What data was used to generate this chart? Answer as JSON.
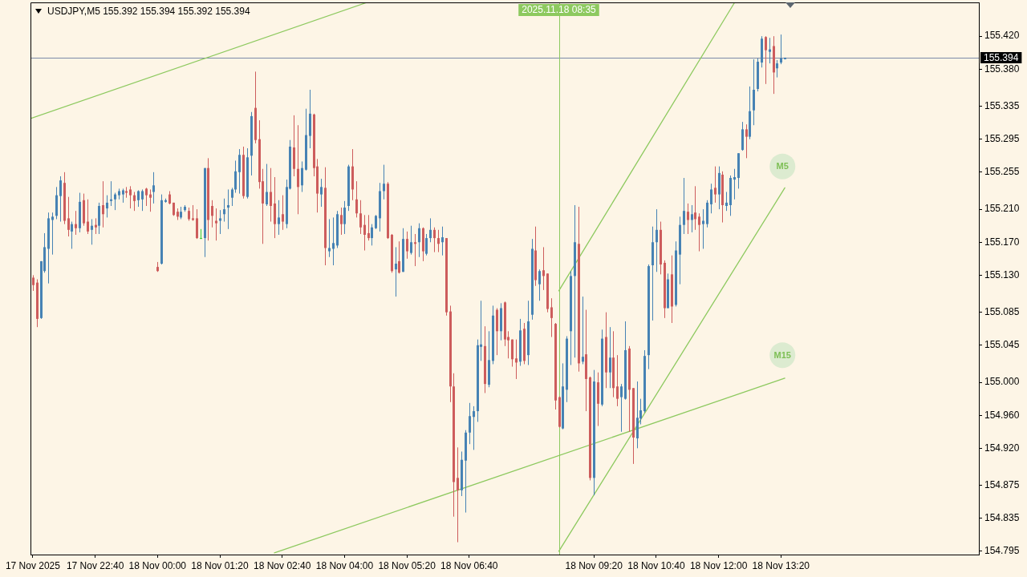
{
  "chart_data": {
    "type": "candlestick",
    "title": "USDJPY,M5 155.392 155.394 155.392 155.394",
    "x": [
      "2025-11-17T21:20",
      "2025-11-17T21:25",
      "2025-11-17T21:30",
      "2025-11-17T21:35",
      "2025-11-17T21:40",
      "2025-11-17T21:45",
      "2025-11-17T21:50",
      "2025-11-17T21:55",
      "2025-11-17T22:00",
      "2025-11-17T22:05",
      "2025-11-17T22:10",
      "2025-11-17T22:15",
      "2025-11-17T22:20",
      "2025-11-17T22:25",
      "2025-11-17T22:30",
      "2025-11-17T22:35",
      "2025-11-17T22:40",
      "2025-11-17T22:45",
      "2025-11-17T22:50",
      "2025-11-17T22:55",
      "2025-11-17T23:00",
      "2025-11-17T23:05",
      "2025-11-17T23:10",
      "2025-11-17T23:15",
      "2025-11-17T23:20",
      "2025-11-17T23:25",
      "2025-11-17T23:30",
      "2025-11-17T23:35",
      "2025-11-17T23:40",
      "2025-11-17T23:45",
      "2025-11-17T23:50",
      "2025-11-17T23:55",
      "2025-11-18T00:00",
      "2025-11-18T00:05",
      "2025-11-18T00:10",
      "2025-11-18T00:15",
      "2025-11-18T00:20",
      "2025-11-18T00:25",
      "2025-11-18T00:30",
      "2025-11-18T00:35",
      "2025-11-18T00:40",
      "2025-11-18T00:45",
      "2025-11-18T00:50",
      "2025-11-18T00:55",
      "2025-11-18T01:00",
      "2025-11-18T01:05",
      "2025-11-18T01:10",
      "2025-11-18T01:15",
      "2025-11-18T01:20",
      "2025-11-18T01:25",
      "2025-11-18T01:30",
      "2025-11-18T01:35",
      "2025-11-18T01:40",
      "2025-11-18T01:45",
      "2025-11-18T01:50",
      "2025-11-18T01:55",
      "2025-11-18T02:00",
      "2025-11-18T02:05",
      "2025-11-18T02:10",
      "2025-11-18T02:15",
      "2025-11-18T02:20",
      "2025-11-18T02:25",
      "2025-11-18T02:30",
      "2025-11-18T02:35",
      "2025-11-18T02:40",
      "2025-11-18T02:45",
      "2025-11-18T02:50",
      "2025-11-18T02:55",
      "2025-11-18T03:00",
      "2025-11-18T03:05",
      "2025-11-18T03:10",
      "2025-11-18T03:15",
      "2025-11-18T03:20",
      "2025-11-18T03:25",
      "2025-11-18T03:30",
      "2025-11-18T03:35",
      "2025-11-18T03:40",
      "2025-11-18T03:45",
      "2025-11-18T03:50",
      "2025-11-18T03:55",
      "2025-11-18T04:00",
      "2025-11-18T04:05",
      "2025-11-18T04:10",
      "2025-11-18T04:15",
      "2025-11-18T04:20",
      "2025-11-18T04:25",
      "2025-11-18T04:30",
      "2025-11-18T04:35",
      "2025-11-18T04:40",
      "2025-11-18T04:45",
      "2025-11-18T04:50",
      "2025-11-18T04:55",
      "2025-11-18T05:00",
      "2025-11-18T05:05",
      "2025-11-18T05:10",
      "2025-11-18T05:15",
      "2025-11-18T05:20",
      "2025-11-18T05:25",
      "2025-11-18T05:30",
      "2025-11-18T05:35",
      "2025-11-18T05:40",
      "2025-11-18T05:45",
      "2025-11-18T05:50",
      "2025-11-18T05:55",
      "2025-11-18T06:00",
      "2025-11-18T06:05",
      "2025-11-18T06:10",
      "2025-11-18T06:15",
      "2025-11-18T06:20",
      "2025-11-18T06:25",
      "2025-11-18T06:30",
      "2025-11-18T06:35",
      "2025-11-18T06:40",
      "2025-11-18T06:45",
      "2025-11-18T06:50",
      "2025-11-18T06:55",
      "2025-11-18T07:00",
      "2025-11-18T07:05",
      "2025-11-18T07:10",
      "2025-11-18T07:15",
      "2025-11-18T07:20",
      "2025-11-18T07:25",
      "2025-11-18T07:30",
      "2025-11-18T07:35",
      "2025-11-18T07:40",
      "2025-11-18T07:45",
      "2025-11-18T07:50",
      "2025-11-18T07:55",
      "2025-11-18T08:00",
      "2025-11-18T08:05",
      "2025-11-18T08:10",
      "2025-11-18T08:15",
      "2025-11-18T08:20",
      "2025-11-18T08:25",
      "2025-11-18T08:30",
      "2025-11-18T08:35",
      "2025-11-18T08:40",
      "2025-11-18T08:45",
      "2025-11-18T08:50",
      "2025-11-18T08:55",
      "2025-11-18T09:00",
      "2025-11-18T09:05",
      "2025-11-18T09:10",
      "2025-11-18T09:15",
      "2025-11-18T09:20",
      "2025-11-18T09:25",
      "2025-11-18T09:30",
      "2025-11-18T09:35",
      "2025-11-18T09:40",
      "2025-11-18T09:45",
      "2025-11-18T09:50",
      "2025-11-18T09:55",
      "2025-11-18T10:00",
      "2025-11-18T10:05",
      "2025-11-18T10:10",
      "2025-11-18T10:15",
      "2025-11-18T10:20",
      "2025-11-18T10:25",
      "2025-11-18T10:30",
      "2025-11-18T10:35",
      "2025-11-18T10:40",
      "2025-11-18T10:45",
      "2025-11-18T10:50",
      "2025-11-18T10:55",
      "2025-11-18T11:00",
      "2025-11-18T11:05",
      "2025-11-18T11:10",
      "2025-11-18T11:15",
      "2025-11-18T11:20",
      "2025-11-18T11:25",
      "2025-11-18T11:30",
      "2025-11-18T11:35",
      "2025-11-18T11:40",
      "2025-11-18T11:45",
      "2025-11-18T11:50",
      "2025-11-18T11:55",
      "2025-11-18T12:00",
      "2025-11-18T12:05",
      "2025-11-18T12:10",
      "2025-11-18T12:15",
      "2025-11-18T12:20",
      "2025-11-18T12:25",
      "2025-11-18T12:30",
      "2025-11-18T12:35",
      "2025-11-18T12:40",
      "2025-11-18T12:45",
      "2025-11-18T12:50",
      "2025-11-18T12:55",
      "2025-11-18T13:00",
      "2025-11-18T13:05",
      "2025-11-18T13:10",
      "2025-11-18T13:15",
      "2025-11-18T13:20",
      "2025-11-18T13:25"
    ],
    "ohlc": [
      [
        155.127,
        155.13,
        155.111,
        155.118
      ],
      [
        155.121,
        155.125,
        155.067,
        155.077
      ],
      [
        155.078,
        155.147,
        155.077,
        155.147
      ],
      [
        155.135,
        155.181,
        155.133,
        155.164
      ],
      [
        155.162,
        155.206,
        155.12,
        155.199
      ],
      [
        155.197,
        155.206,
        155.155,
        155.201
      ],
      [
        155.202,
        155.237,
        155.198,
        155.227
      ],
      [
        155.226,
        155.25,
        155.195,
        155.245
      ],
      [
        155.242,
        155.255,
        155.192,
        155.196
      ],
      [
        155.199,
        155.225,
        155.177,
        155.185
      ],
      [
        155.183,
        155.195,
        155.162,
        155.192
      ],
      [
        155.192,
        155.208,
        155.179,
        155.187
      ],
      [
        155.187,
        155.23,
        155.182,
        155.219
      ],
      [
        155.221,
        155.229,
        155.19,
        155.193
      ],
      [
        155.195,
        155.222,
        155.18,
        155.183
      ],
      [
        155.185,
        155.198,
        155.167,
        155.19
      ],
      [
        155.191,
        155.199,
        155.18,
        155.188
      ],
      [
        155.19,
        155.218,
        155.18,
        155.214
      ],
      [
        155.215,
        155.244,
        155.188,
        155.204
      ],
      [
        155.211,
        155.227,
        155.2,
        155.218
      ],
      [
        155.22,
        155.244,
        155.214,
        155.222
      ],
      [
        155.222,
        155.23,
        155.209,
        155.228
      ],
      [
        155.227,
        155.235,
        155.222,
        155.232
      ],
      [
        155.228,
        155.235,
        155.218,
        155.233
      ],
      [
        155.232,
        155.237,
        155.224,
        155.23
      ],
      [
        155.234,
        155.238,
        155.211,
        155.227
      ],
      [
        155.227,
        155.231,
        155.208,
        155.22
      ],
      [
        155.221,
        155.233,
        155.213,
        155.232
      ],
      [
        155.222,
        155.234,
        155.208,
        155.232
      ],
      [
        155.235,
        155.236,
        155.214,
        155.227
      ],
      [
        155.228,
        155.234,
        155.207,
        155.224
      ],
      [
        155.231,
        155.255,
        155.217,
        155.239
      ],
      [
        155.14,
        155.146,
        155.134,
        155.135
      ],
      [
        155.144,
        155.228,
        155.143,
        155.221
      ],
      [
        155.219,
        155.223,
        155.218,
        155.221
      ],
      [
        155.228,
        155.232,
        155.216,
        155.217
      ],
      [
        155.218,
        155.218,
        155.202,
        155.203
      ],
      [
        155.207,
        155.211,
        155.197,
        155.201
      ],
      [
        155.2,
        155.213,
        155.198,
        155.207
      ],
      [
        155.209,
        155.215,
        155.207,
        155.213
      ],
      [
        155.208,
        155.212,
        155.196,
        155.198
      ],
      [
        155.199,
        155.215,
        155.196,
        155.197
      ],
      [
        155.199,
        155.21,
        155.174,
        155.175
      ],
      [
        155.175,
        155.186,
        155.174,
        155.175
      ],
      [
        155.175,
        155.26,
        155.152,
        155.26
      ],
      [
        155.26,
        155.272,
        155.172,
        155.197
      ],
      [
        155.214,
        155.221,
        155.188,
        155.202
      ],
      [
        155.196,
        155.211,
        155.172,
        155.193
      ],
      [
        155.196,
        155.209,
        155.18,
        155.199
      ],
      [
        155.204,
        155.223,
        155.195,
        155.21
      ],
      [
        155.212,
        155.234,
        155.186,
        155.215
      ],
      [
        155.224,
        155.236,
        155.214,
        155.234
      ],
      [
        155.234,
        155.269,
        155.23,
        155.256
      ],
      [
        155.255,
        155.283,
        155.229,
        155.276
      ],
      [
        155.276,
        155.286,
        155.223,
        155.226
      ],
      [
        155.225,
        155.284,
        155.223,
        155.273
      ],
      [
        155.275,
        155.328,
        155.251,
        155.323
      ],
      [
        155.333,
        155.377,
        155.29,
        155.294
      ],
      [
        155.295,
        155.318,
        155.235,
        155.243
      ],
      [
        155.244,
        155.259,
        155.168,
        155.217
      ],
      [
        155.216,
        155.265,
        155.214,
        155.231
      ],
      [
        155.231,
        155.26,
        155.195,
        155.214
      ],
      [
        155.217,
        155.249,
        155.175,
        155.192
      ],
      [
        155.192,
        155.221,
        155.179,
        155.2
      ],
      [
        155.204,
        155.227,
        155.185,
        155.195
      ],
      [
        155.192,
        155.246,
        155.187,
        155.237
      ],
      [
        155.235,
        155.294,
        155.234,
        155.286
      ],
      [
        155.285,
        155.324,
        155.25,
        155.259
      ],
      [
        155.259,
        155.312,
        155.204,
        155.237
      ],
      [
        155.239,
        155.268,
        155.231,
        155.26
      ],
      [
        155.258,
        155.332,
        155.257,
        155.3
      ],
      [
        155.299,
        155.355,
        155.284,
        155.326
      ],
      [
        155.325,
        155.326,
        155.25,
        155.26
      ],
      [
        155.262,
        155.271,
        155.206,
        155.229
      ],
      [
        155.228,
        155.247,
        155.213,
        155.237
      ],
      [
        155.236,
        155.261,
        155.142,
        155.163
      ],
      [
        155.159,
        155.198,
        155.152,
        155.163
      ],
      [
        155.162,
        155.2,
        155.142,
        155.169
      ],
      [
        155.166,
        155.208,
        155.163,
        155.204
      ],
      [
        155.203,
        155.212,
        155.179,
        155.192
      ],
      [
        155.192,
        155.22,
        155.18,
        155.212
      ],
      [
        155.214,
        155.264,
        155.208,
        155.262
      ],
      [
        155.262,
        155.283,
        155.221,
        155.234
      ],
      [
        155.222,
        155.244,
        155.2,
        155.205
      ],
      [
        155.205,
        155.221,
        155.18,
        155.188
      ],
      [
        155.191,
        155.203,
        155.16,
        155.179
      ],
      [
        155.181,
        155.203,
        155.172,
        155.175
      ],
      [
        155.175,
        155.192,
        155.166,
        155.188
      ],
      [
        155.187,
        155.203,
        155.186,
        155.202
      ],
      [
        155.199,
        155.242,
        155.183,
        155.232
      ],
      [
        155.232,
        155.264,
        155.222,
        155.241
      ],
      [
        155.241,
        155.243,
        155.174,
        155.175
      ],
      [
        155.179,
        155.18,
        155.133,
        155.135
      ],
      [
        155.137,
        155.164,
        155.104,
        155.144
      ],
      [
        155.147,
        155.171,
        155.132,
        155.133
      ],
      [
        155.134,
        155.187,
        155.134,
        155.174
      ],
      [
        155.174,
        155.183,
        155.15,
        155.159
      ],
      [
        155.157,
        155.19,
        155.155,
        155.17
      ],
      [
        155.17,
        155.18,
        155.141,
        155.168
      ],
      [
        155.17,
        155.193,
        155.152,
        155.187
      ],
      [
        155.187,
        155.188,
        155.147,
        155.159
      ],
      [
        155.156,
        155.18,
        155.154,
        155.175
      ],
      [
        155.175,
        155.199,
        155.17,
        155.185
      ],
      [
        155.185,
        155.188,
        155.158,
        155.175
      ],
      [
        155.175,
        155.185,
        155.158,
        155.168
      ],
      [
        155.17,
        155.189,
        155.154,
        155.176
      ],
      [
        155.175,
        155.175,
        155.081,
        155.085
      ],
      [
        155.086,
        155.093,
        154.976,
        154.995
      ],
      [
        154.995,
        155.011,
        154.837,
        154.879
      ],
      [
        154.884,
        154.921,
        154.806,
        154.869
      ],
      [
        154.869,
        154.916,
        154.862,
        154.906
      ],
      [
        154.905,
        154.942,
        154.842,
        154.939
      ],
      [
        154.939,
        154.975,
        154.925,
        154.959
      ],
      [
        154.958,
        154.971,
        154.918,
        154.965
      ],
      [
        154.965,
        155.052,
        154.952,
        155.045
      ],
      [
        155.043,
        155.099,
        155.026,
        155.046
      ],
      [
        155.044,
        155.068,
        154.987,
        154.998
      ],
      [
        154.997,
        155.062,
        154.994,
        155.027
      ],
      [
        155.026,
        155.093,
        155.022,
        155.081
      ],
      [
        155.088,
        155.09,
        155.033,
        155.062
      ],
      [
        155.062,
        155.096,
        155.051,
        155.09
      ],
      [
        155.097,
        155.098,
        155.044,
        155.052
      ],
      [
        155.055,
        155.062,
        155.029,
        155.051
      ],
      [
        155.052,
        155.052,
        155.019,
        155.028
      ],
      [
        155.029,
        155.052,
        155.004,
        155.024
      ],
      [
        155.025,
        155.077,
        155.02,
        155.063
      ],
      [
        155.065,
        155.072,
        155.022,
        155.026
      ],
      [
        155.033,
        155.099,
        155.021,
        155.074
      ],
      [
        155.082,
        155.174,
        155.076,
        155.162
      ],
      [
        155.16,
        155.189,
        155.117,
        155.124
      ],
      [
        155.119,
        155.137,
        155.099,
        155.135
      ],
      [
        155.136,
        155.164,
        155.112,
        155.129
      ],
      [
        155.132,
        155.132,
        155.085,
        155.089
      ],
      [
        155.091,
        155.102,
        155.055,
        155.078
      ],
      [
        155.071,
        155.072,
        154.967,
        154.978
      ],
      [
        154.982,
        154.983,
        154.945,
        154.946
      ],
      [
        154.944,
        155.023,
        154.943,
        154.995
      ],
      [
        154.991,
        155.056,
        154.976,
        155.053
      ],
      [
        155.062,
        155.135,
        155.021,
        155.129
      ],
      [
        155.129,
        155.215,
        155.03,
        155.17
      ],
      [
        155.168,
        155.213,
        155.013,
        155.023
      ],
      [
        155.025,
        155.104,
        155.022,
        155.031
      ],
      [
        155.034,
        155.088,
        154.965,
        155.004
      ],
      [
        155.006,
        155.007,
        154.881,
        154.884
      ],
      [
        154.884,
        155.015,
        154.863,
        155.001
      ],
      [
        155.0,
        155.012,
        154.947,
        154.974
      ],
      [
        154.973,
        155.064,
        154.971,
        155.053
      ],
      [
        155.055,
        155.085,
        154.993,
        155.012
      ],
      [
        155.012,
        155.067,
        154.993,
        155.03
      ],
      [
        155.03,
        155.062,
        154.982,
        154.993
      ],
      [
        154.995,
        155.033,
        154.971,
        154.98
      ],
      [
        154.982,
        154.998,
        154.94,
        154.995
      ],
      [
        154.98,
        155.074,
        154.979,
        155.039
      ],
      [
        155.041,
        155.044,
        154.94,
        154.991
      ],
      [
        154.993,
        154.993,
        154.901,
        154.933
      ],
      [
        154.932,
        155.001,
        154.92,
        154.957
      ],
      [
        154.956,
        154.98,
        154.949,
        154.966
      ],
      [
        154.965,
        155.039,
        154.963,
        155.032
      ],
      [
        155.033,
        155.143,
        155.016,
        155.141
      ],
      [
        155.142,
        155.189,
        155.075,
        155.17
      ],
      [
        155.17,
        155.21,
        155.134,
        155.185
      ],
      [
        155.185,
        155.195,
        155.131,
        155.143
      ],
      [
        155.145,
        155.148,
        155.078,
        155.09
      ],
      [
        155.09,
        155.132,
        155.09,
        155.125
      ],
      [
        155.131,
        155.154,
        155.072,
        155.092
      ],
      [
        155.094,
        155.171,
        155.092,
        155.16
      ],
      [
        155.155,
        155.201,
        155.119,
        155.191
      ],
      [
        155.191,
        155.248,
        155.18,
        155.208
      ],
      [
        155.207,
        155.217,
        155.18,
        155.197
      ],
      [
        155.197,
        155.215,
        155.182,
        155.204
      ],
      [
        155.206,
        155.238,
        155.185,
        155.198
      ],
      [
        155.201,
        155.205,
        155.159,
        155.191
      ],
      [
        155.192,
        155.21,
        155.162,
        155.196
      ],
      [
        155.192,
        155.221,
        155.188,
        155.218
      ],
      [
        155.216,
        155.241,
        155.205,
        155.234
      ],
      [
        155.236,
        155.262,
        155.218,
        155.228
      ],
      [
        155.228,
        155.262,
        155.21,
        155.254
      ],
      [
        155.252,
        155.256,
        155.194,
        155.215
      ],
      [
        155.214,
        155.231,
        155.208,
        155.218
      ],
      [
        155.215,
        155.251,
        155.202,
        155.248
      ],
      [
        155.246,
        155.259,
        155.222,
        155.249
      ],
      [
        155.248,
        155.278,
        155.235,
        155.278
      ],
      [
        155.282,
        155.316,
        155.281,
        155.307
      ],
      [
        155.307,
        155.313,
        155.272,
        155.298
      ],
      [
        155.298,
        155.359,
        155.295,
        155.329
      ],
      [
        155.33,
        155.392,
        155.312,
        155.355
      ],
      [
        155.356,
        155.393,
        155.353,
        155.389
      ],
      [
        155.388,
        155.42,
        155.382,
        155.417
      ],
      [
        155.419,
        155.42,
        155.362,
        155.403
      ],
      [
        155.401,
        155.418,
        155.387,
        155.404
      ],
      [
        155.408,
        155.42,
        155.35,
        155.376
      ],
      [
        155.381,
        155.391,
        155.37,
        155.387
      ],
      [
        155.388,
        155.422,
        155.386,
        155.393
      ],
      [
        155.392,
        155.394,
        155.392,
        155.394
      ]
    ],
    "colors": [
      "#cd5c5c",
      "#cd5c5c",
      "#4682b4",
      "#4682b4",
      "#4682b4",
      "#4682b4",
      "#4682b4",
      "#4682b4",
      "#cd5c5c",
      "#cd5c5c",
      "#4682b4",
      "#cd5c5c",
      "#4682b4",
      "#cd5c5c",
      "#cd5c5c",
      "#4682b4",
      "#cd5c5c",
      "#4682b4",
      "#cd5c5c",
      "#4682b4",
      "#4682b4",
      "#4682b4",
      "#4682b4",
      "#4682b4",
      "#cd5c5c",
      "#cd5c5c",
      "#cd5c5c",
      "#4682b4",
      "#4682b4",
      "#cd5c5c",
      "#cd5c5c",
      "#4682b4",
      "#cd5c5c",
      "#4682b4",
      "#4682b4",
      "#cd5c5c",
      "#cd5c5c",
      "#cd5c5c",
      "#4682b4",
      "#4682b4",
      "#cd5c5c",
      "#cd5c5c",
      "#cd5c5c",
      "#32cd32",
      "#4682b4",
      "#cd5c5c",
      "#cd5c5c",
      "#cd5c5c",
      "#4682b4",
      "#4682b4",
      "#4682b4",
      "#4682b4",
      "#4682b4",
      "#4682b4",
      "#cd5c5c",
      "#4682b4",
      "#4682b4",
      "#cd5c5c",
      "#cd5c5c",
      "#cd5c5c",
      "#4682b4",
      "#cd5c5c",
      "#cd5c5c",
      "#4682b4",
      "#cd5c5c",
      "#4682b4",
      "#4682b4",
      "#cd5c5c",
      "#cd5c5c",
      "#4682b4",
      "#4682b4",
      "#4682b4",
      "#cd5c5c",
      "#cd5c5c",
      "#4682b4",
      "#cd5c5c",
      "#4682b4",
      "#4682b4",
      "#4682b4",
      "#cd5c5c",
      "#4682b4",
      "#4682b4",
      "#cd5c5c",
      "#cd5c5c",
      "#cd5c5c",
      "#cd5c5c",
      "#cd5c5c",
      "#4682b4",
      "#4682b4",
      "#4682b4",
      "#4682b4",
      "#cd5c5c",
      "#cd5c5c",
      "#4682b4",
      "#cd5c5c",
      "#4682b4",
      "#cd5c5c",
      "#4682b4",
      "#cd5c5c",
      "#4682b4",
      "#cd5c5c",
      "#4682b4",
      "#4682b4",
      "#cd5c5c",
      "#cd5c5c",
      "#4682b4",
      "#cd5c5c",
      "#cd5c5c",
      "#cd5c5c",
      "#cd5c5c",
      "#4682b4",
      "#4682b4",
      "#4682b4",
      "#4682b4",
      "#4682b4",
      "#4682b4",
      "#cd5c5c",
      "#4682b4",
      "#4682b4",
      "#cd5c5c",
      "#4682b4",
      "#cd5c5c",
      "#cd5c5c",
      "#cd5c5c",
      "#cd5c5c",
      "#4682b4",
      "#cd5c5c",
      "#4682b4",
      "#4682b4",
      "#cd5c5c",
      "#4682b4",
      "#cd5c5c",
      "#cd5c5c",
      "#cd5c5c",
      "#cd5c5c",
      "#cd5c5c",
      "#4682b4",
      "#4682b4",
      "#4682b4",
      "#4682b4",
      "#cd5c5c",
      "#4682b4",
      "#cd5c5c",
      "#cd5c5c",
      "#4682b4",
      "#cd5c5c",
      "#4682b4",
      "#cd5c5c",
      "#4682b4",
      "#cd5c5c",
      "#cd5c5c",
      "#4682b4",
      "#4682b4",
      "#cd5c5c",
      "#cd5c5c",
      "#4682b4",
      "#4682b4",
      "#4682b4",
      "#4682b4",
      "#4682b4",
      "#4682b4",
      "#cd5c5c",
      "#cd5c5c",
      "#4682b4",
      "#cd5c5c",
      "#4682b4",
      "#4682b4",
      "#4682b4",
      "#cd5c5c",
      "#4682b4",
      "#cd5c5c",
      "#cd5c5c",
      "#4682b4",
      "#4682b4",
      "#4682b4",
      "#cd5c5c",
      "#4682b4",
      "#cd5c5c",
      "#4682b4",
      "#4682b4",
      "#4682b4",
      "#4682b4",
      "#4682b4",
      "#cd5c5c",
      "#4682b4",
      "#4682b4",
      "#4682b4",
      "#4682b4",
      "#cd5c5c",
      "#4682b4",
      "#cd5c5c",
      "#4682b4",
      "#4682b4",
      "#4682b4"
    ],
    "series": [
      {
        "type": "line",
        "color": "#8dc95f",
        "x": [
          "2025-11-17T21:17",
          "2025-11-18T04:29"
        ],
        "values": [
          155.32,
          155.461
        ]
      },
      {
        "type": "line",
        "color": "#8dc95f",
        "x": [
          "2025-11-18T08:35",
          "2025-11-18T12:20"
        ],
        "values": [
          155.111,
          155.46
        ]
      },
      {
        "type": "line",
        "color": "#8dc95f",
        "x": [
          "2025-11-18T08:35",
          "2025-11-18T13:25"
        ],
        "values": [
          154.795,
          155.236
        ]
      },
      {
        "type": "line",
        "color": "#8dc95f",
        "x": [
          "2025-11-18T02:30",
          "2025-11-18T13:25"
        ],
        "values": [
          154.793,
          155.005
        ]
      }
    ],
    "xlim": [
      "2025-11-17T21:17",
      "2025-11-18T17:34"
    ],
    "xticks": [
      {
        "value": "2025-11-17T21:20",
        "label": "17 Nov 2025"
      },
      {
        "value": "2025-11-17T22:40",
        "label": "17 Nov 22:40"
      },
      {
        "value": "2025-11-18T00:00",
        "label": "18 Nov 00:00"
      },
      {
        "value": "2025-11-18T01:20",
        "label": "18 Nov 01:20"
      },
      {
        "value": "2025-11-18T02:40",
        "label": "18 Nov 02:40"
      },
      {
        "value": "2025-11-18T04:00",
        "label": "18 Nov 04:00"
      },
      {
        "value": "2025-11-18T05:20",
        "label": "18 Nov 05:20"
      },
      {
        "value": "2025-11-18T06:40",
        "label": "18 Nov 06:40"
      },
      {
        "value": "2025-11-18T09:20",
        "label": "18 Nov 09:20"
      },
      {
        "value": "2025-11-18T10:40",
        "label": "18 Nov 10:40"
      },
      {
        "value": "2025-11-18T12:00",
        "label": "18 Nov 12:00"
      },
      {
        "value": "2025-11-18T13:20",
        "label": "18 Nov 13:20"
      }
    ],
    "ylim": [
      154.791,
      155.461
    ],
    "yticks": [
      {
        "value": 154.795,
        "label": "154.795"
      },
      {
        "value": 154.835,
        "label": "154.835"
      },
      {
        "value": 154.875,
        "label": "154.875"
      },
      {
        "value": 154.92,
        "label": "154.920"
      },
      {
        "value": 154.96,
        "label": "154.960"
      },
      {
        "value": 155.0,
        "label": "155.000"
      },
      {
        "value": 155.045,
        "label": "155.045"
      },
      {
        "value": 155.085,
        "label": "155.085"
      },
      {
        "value": 155.13,
        "label": "155.130"
      },
      {
        "value": 155.17,
        "label": "155.170"
      },
      {
        "value": 155.21,
        "label": "155.210"
      },
      {
        "value": 155.255,
        "label": "155.255"
      },
      {
        "value": 155.295,
        "label": "155.295"
      },
      {
        "value": 155.335,
        "label": "155.335"
      },
      {
        "value": 155.38,
        "label": "155.380"
      },
      {
        "value": 155.42,
        "label": "155.420"
      }
    ],
    "ref_lines": [
      {
        "axis": "y",
        "value": 155.394,
        "label": "155.394",
        "color": "#7a8aa8"
      },
      {
        "axis": "x",
        "value": "2025-11-18T08:35",
        "label": "2025.11.18 08:35",
        "color": "#8dc95f"
      }
    ],
    "annotations": [
      {
        "text": "M5",
        "x": "2025-11-18T13:22",
        "y": 155.262
      },
      {
        "text": "M15",
        "x": "2025-11-18T13:22",
        "y": 155.033
      }
    ]
  }
}
